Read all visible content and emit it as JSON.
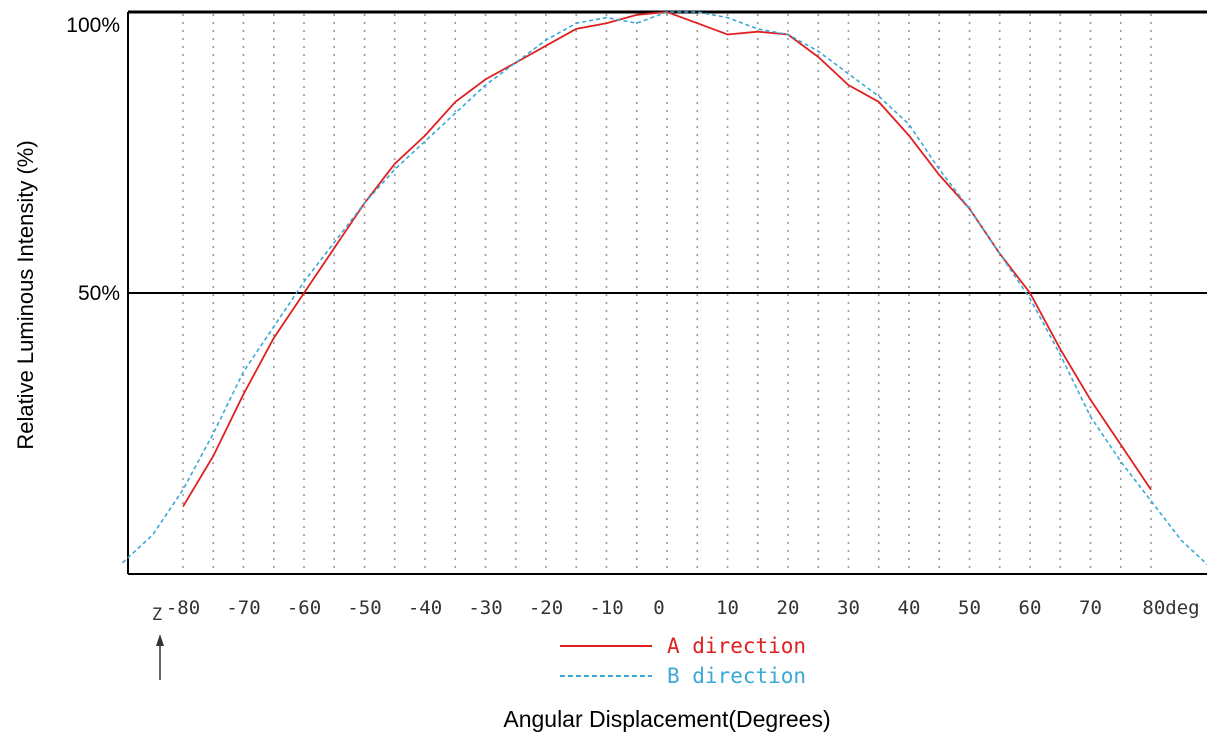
{
  "chart_data": {
    "type": "line",
    "ylabel": "Relative Luminous Intensity (%)",
    "xlabel": "Angular Displacement(Degrees)",
    "x_ticks": [
      "-80",
      "-70",
      "-60",
      "-50",
      "-40",
      "-30",
      "-20",
      "-10",
      "0",
      "10",
      "20",
      "30",
      "40",
      "50",
      "60",
      "70",
      "80deg"
    ],
    "y_ticks": [
      "100%",
      "50%"
    ],
    "xlim": [
      -90,
      90
    ],
    "ylim": [
      0,
      100
    ],
    "grid": true,
    "z_label": "Z",
    "series": [
      {
        "name": "A direction",
        "color": "#e02020",
        "x": [
          -80,
          -75,
          -70,
          -65,
          -60,
          -55,
          -50,
          -45,
          -40,
          -35,
          -30,
          -25,
          -20,
          -15,
          -10,
          -5,
          0,
          5,
          10,
          15,
          20,
          25,
          30,
          35,
          40,
          45,
          50,
          55,
          60,
          65,
          70,
          75,
          80
        ],
        "y": [
          12,
          21,
          32,
          42,
          50,
          58,
          66,
          73,
          78,
          84,
          88,
          91,
          94,
          97,
          98,
          99.5,
          100,
          98,
          96,
          96.5,
          96,
          92,
          87,
          84,
          78,
          71,
          65,
          57,
          50,
          40,
          31,
          23,
          15
        ]
      },
      {
        "name": "B direction",
        "color": "#3aa8d8",
        "x": [
          -90,
          -85,
          -80,
          -75,
          -70,
          -65,
          -60,
          -55,
          -50,
          -45,
          -40,
          -35,
          -30,
          -25,
          -20,
          -15,
          -10,
          -5,
          0,
          5,
          10,
          15,
          20,
          25,
          30,
          35,
          40,
          45,
          50,
          55,
          60,
          65,
          70,
          75,
          80,
          85,
          90
        ],
        "y": [
          2,
          7,
          15,
          25,
          36,
          44,
          52,
          59,
          66,
          72,
          77,
          82,
          87,
          91,
          95,
          98,
          99,
          98,
          100,
          100,
          99,
          97,
          96,
          93,
          89,
          85,
          80,
          72,
          65,
          57,
          49,
          39,
          28,
          20,
          13,
          6,
          1
        ]
      }
    ],
    "legend_position": "bottom-center"
  }
}
